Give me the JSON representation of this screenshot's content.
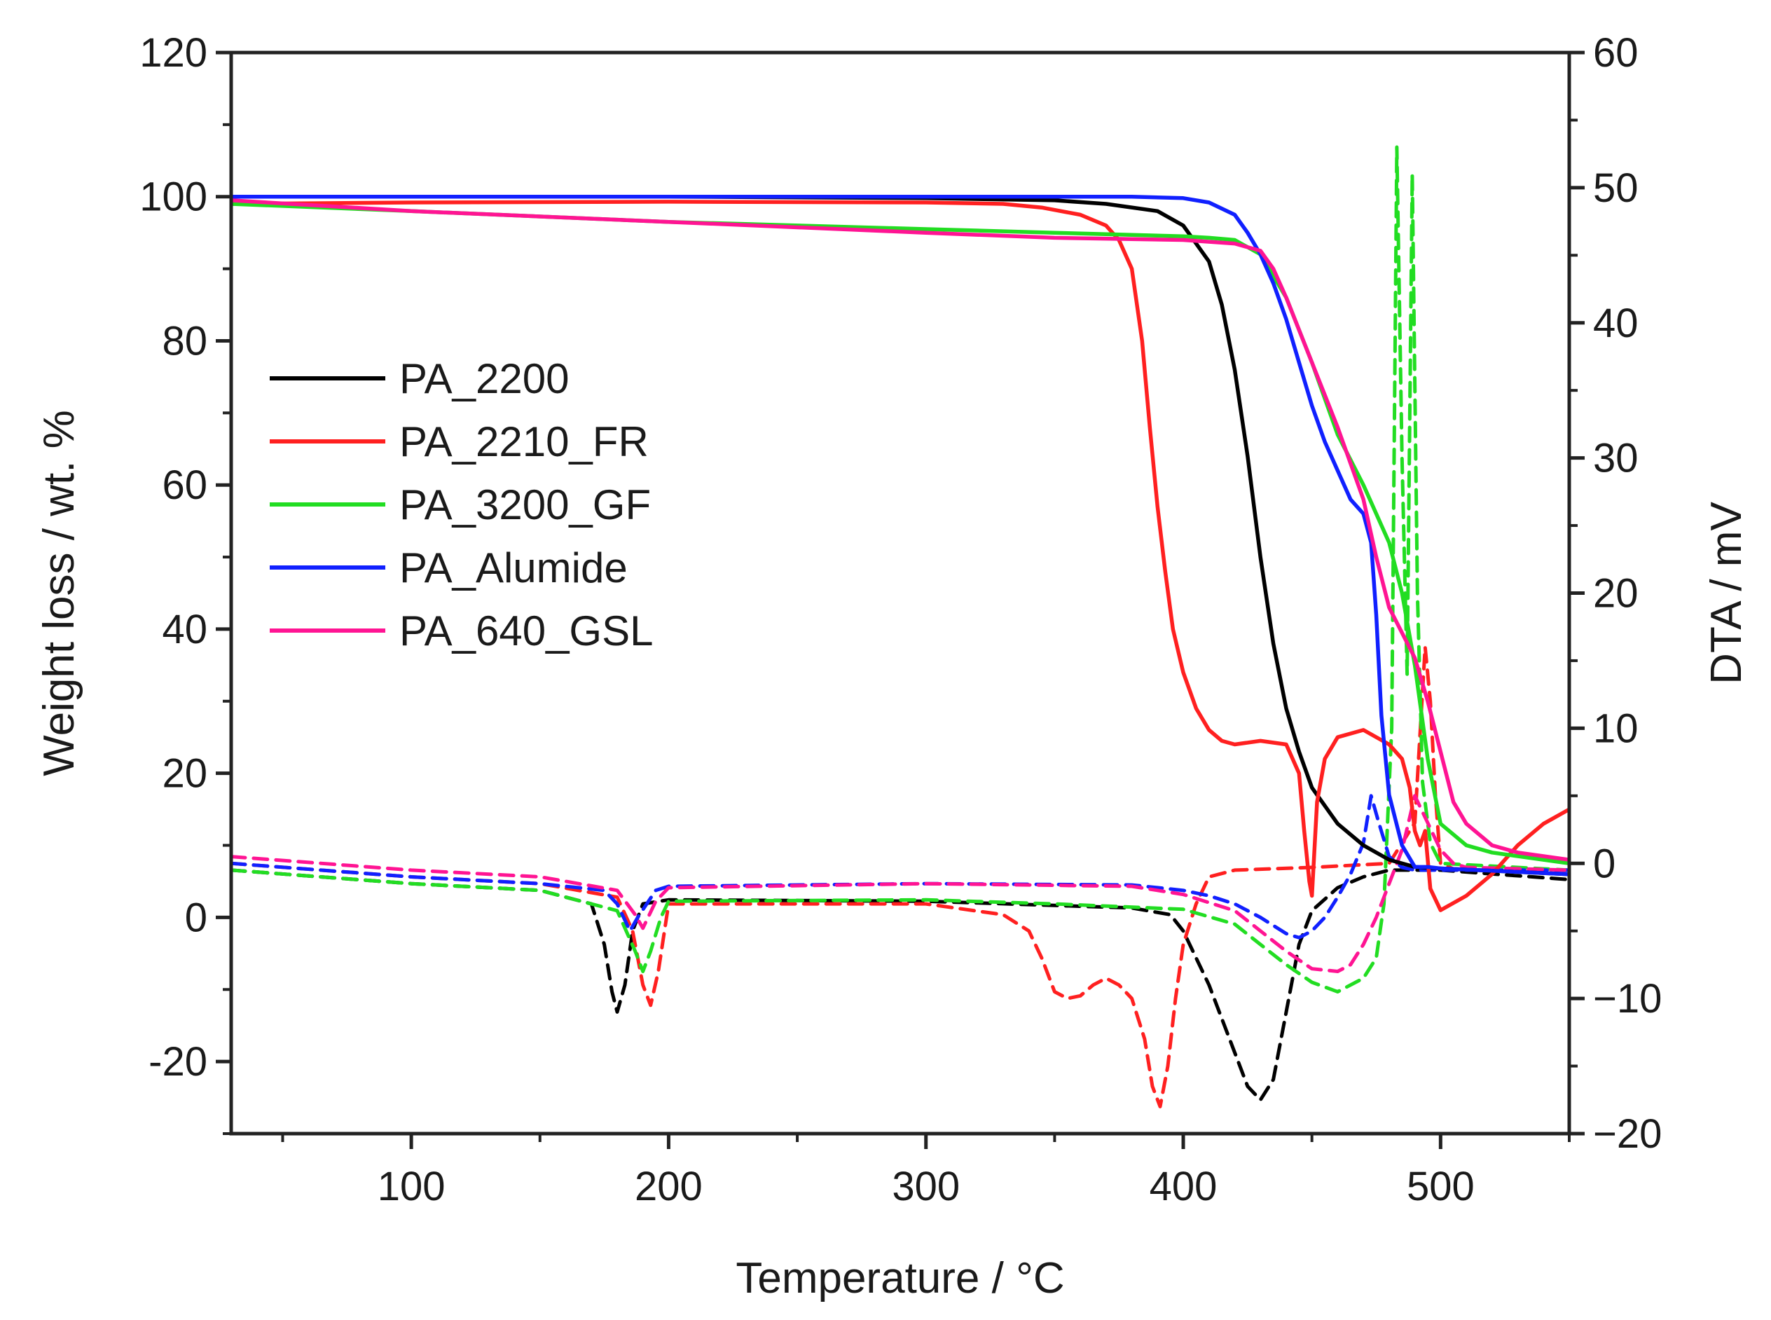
{
  "chart_data": {
    "type": "line",
    "xlabel": "Temperature / °C",
    "ylabel_left": "Weight loss / wt. %",
    "ylabel_right": "DTA / mV",
    "xlim": [
      30,
      550
    ],
    "ylim_left": [
      -30,
      120
    ],
    "ylim_right": [
      -20,
      60
    ],
    "x_ticks": [
      100,
      200,
      300,
      400,
      500
    ],
    "y_left_ticks": [
      -20,
      0,
      20,
      40,
      60,
      80,
      100,
      120
    ],
    "y_right_ticks": [
      -20,
      -10,
      0,
      10,
      20,
      30,
      40,
      50,
      60
    ],
    "x_tick_labels": [
      "100",
      "200",
      "300",
      "400",
      "500"
    ],
    "y_left_tick_labels": [
      "-20",
      "0",
      "20",
      "40",
      "60",
      "80",
      "100",
      "120"
    ],
    "y_right_tick_labels": [
      "−20",
      "−10",
      "0",
      "10",
      "20",
      "30",
      "40",
      "50",
      "60"
    ],
    "legend": [
      "PA_2200",
      "PA_2210_FR",
      "PA_3200_GF",
      "PA_Alumide",
      "PA_640_GSL"
    ],
    "series": [
      {
        "name": "PA_2200",
        "color": "#000000",
        "kind": "TG",
        "axis": "left",
        "x": [
          30,
          100,
          200,
          300,
          350,
          370,
          390,
          400,
          410,
          415,
          420,
          425,
          430,
          435,
          440,
          445,
          450,
          460,
          470,
          480,
          490,
          500,
          550
        ],
        "y": [
          100,
          100,
          100,
          99.8,
          99.5,
          99,
          98,
          96,
          91,
          85,
          76,
          64,
          50,
          38,
          29,
          23,
          18,
          13,
          10,
          8,
          7,
          6.8,
          6
        ]
      },
      {
        "name": "PA_2210_FR",
        "color": "#ff2020",
        "kind": "TG",
        "axis": "left",
        "x": [
          30,
          100,
          200,
          300,
          330,
          345,
          360,
          370,
          375,
          380,
          384,
          387,
          390,
          393,
          396,
          400,
          405,
          410,
          415,
          420,
          430,
          440,
          445,
          447,
          449,
          450,
          452,
          455,
          460,
          470,
          480,
          485,
          488,
          490,
          492,
          494,
          496,
          500,
          510,
          520,
          530,
          540,
          550
        ],
        "y": [
          99,
          99.2,
          99.3,
          99.2,
          99,
          98.5,
          97.5,
          96,
          94,
          90,
          80,
          68,
          57,
          48,
          40,
          34,
          29,
          26,
          24.5,
          24,
          24.5,
          24,
          20,
          12,
          5,
          3,
          16,
          22,
          25,
          26,
          24,
          22,
          18,
          12,
          10,
          12,
          4,
          1,
          3,
          6,
          10,
          13,
          15
        ]
      },
      {
        "name": "PA_3200_GF",
        "color": "#22dd22",
        "kind": "TG",
        "axis": "left",
        "x": [
          30,
          100,
          200,
          300,
          350,
          400,
          410,
          420,
          430,
          440,
          450,
          460,
          470,
          480,
          485,
          490,
          495,
          500,
          510,
          520,
          530,
          540,
          550
        ],
        "y": [
          99,
          98,
          96.5,
          95.5,
          95,
          94.5,
          94.3,
          94,
          92,
          86,
          77,
          67,
          60,
          52,
          45,
          35,
          22,
          13,
          10,
          9,
          8.5,
          8,
          7.5
        ]
      },
      {
        "name": "PA_Alumide",
        "color": "#1020ff",
        "kind": "TG",
        "axis": "left",
        "x": [
          30,
          100,
          200,
          300,
          380,
          400,
          410,
          420,
          425,
          430,
          435,
          440,
          445,
          450,
          455,
          460,
          465,
          470,
          473,
          475,
          477,
          480,
          485,
          490,
          495,
          500,
          550
        ],
        "y": [
          100,
          100,
          100,
          100,
          100,
          99.8,
          99.2,
          97.5,
          95,
          92,
          88,
          83,
          77,
          71,
          66,
          62,
          58,
          56,
          52,
          42,
          28,
          17,
          10,
          7,
          7,
          6.8,
          6
        ]
      },
      {
        "name": "PA_640_GSL",
        "color": "#ff1493",
        "kind": "TG",
        "axis": "left",
        "x": [
          30,
          100,
          200,
          300,
          350,
          400,
          420,
          430,
          435,
          440,
          450,
          460,
          470,
          475,
          480,
          490,
          495,
          500,
          505,
          510,
          520,
          530,
          540,
          550
        ],
        "y": [
          99.5,
          98,
          96.5,
          95,
          94.3,
          94,
          93.5,
          92.5,
          90,
          86,
          77,
          68,
          58,
          50,
          43,
          36,
          30,
          23,
          16,
          13,
          10,
          9,
          8.5,
          8
        ]
      },
      {
        "name": "PA_2200",
        "color": "#000000",
        "kind": "DTA",
        "axis": "right",
        "x": [
          30,
          100,
          150,
          170,
          175,
          178,
          180,
          183,
          186,
          190,
          200,
          300,
          380,
          395,
          400,
          405,
          410,
          420,
          425,
          430,
          435,
          440,
          445,
          450,
          460,
          470,
          480,
          490,
          500,
          550
        ],
        "y": [
          -0.5,
          -1.5,
          -2,
          -3,
          -6,
          -9.5,
          -11,
          -9,
          -5,
          -3,
          -2.7,
          -2.8,
          -3.3,
          -3.8,
          -5,
          -7,
          -9,
          -14,
          -16.5,
          -17.5,
          -16,
          -11,
          -6,
          -3.5,
          -1.8,
          -1,
          -0.5,
          -0.5,
          -0.5,
          -1.2
        ]
      },
      {
        "name": "PA_2210_FR",
        "color": "#ff2020",
        "kind": "DTA",
        "axis": "right",
        "x": [
          30,
          100,
          150,
          180,
          186,
          190,
          193,
          196,
          200,
          300,
          330,
          340,
          345,
          350,
          355,
          360,
          365,
          370,
          375,
          380,
          385,
          388,
          391,
          394,
          397,
          400,
          405,
          410,
          420,
          450,
          480,
          490,
          494,
          496,
          498,
          500,
          505,
          550
        ],
        "y": [
          0,
          -1,
          -1.5,
          -2.5,
          -5,
          -9,
          -10.5,
          -8,
          -3,
          -3,
          -3.8,
          -5,
          -7,
          -9.5,
          -10,
          -9.8,
          -9,
          -8.5,
          -9,
          -10,
          -13,
          -16.5,
          -18,
          -15,
          -10,
          -6,
          -3,
          -1,
          -0.5,
          -0.3,
          0,
          3,
          16,
          12,
          5,
          0,
          -0.4,
          -0.8
        ]
      },
      {
        "name": "PA_3200_GF",
        "color": "#22dd22",
        "kind": "DTA",
        "axis": "right",
        "x": [
          30,
          100,
          150,
          180,
          187,
          190,
          193,
          197,
          200,
          300,
          350,
          400,
          420,
          430,
          440,
          450,
          460,
          470,
          475,
          478,
          481,
          483,
          485,
          487,
          489,
          491,
          493,
          496,
          500,
          550
        ],
        "y": [
          -0.5,
          -1.5,
          -2,
          -3.5,
          -6.5,
          -8,
          -6.5,
          -4,
          -2.8,
          -2.7,
          -3,
          -3.4,
          -4.5,
          -6,
          -7.5,
          -8.8,
          -9.5,
          -8.5,
          -7,
          -3,
          10,
          53,
          30,
          14,
          51,
          20,
          6,
          1.5,
          0,
          -0.5
        ]
      },
      {
        "name": "PA_Alumide",
        "color": "#1020ff",
        "kind": "DTA",
        "axis": "right",
        "x": [
          30,
          100,
          150,
          175,
          180,
          185,
          188,
          195,
          200,
          300,
          380,
          400,
          410,
          420,
          430,
          440,
          445,
          450,
          455,
          460,
          465,
          470,
          473,
          476,
          480,
          485,
          490,
          550
        ],
        "y": [
          0,
          -1,
          -1.5,
          -2,
          -3,
          -5,
          -4,
          -2,
          -1.7,
          -1.5,
          -1.6,
          -2,
          -2.4,
          -3,
          -4,
          -5.2,
          -5.5,
          -5,
          -4,
          -2.5,
          -0.8,
          1.5,
          5,
          3,
          0.5,
          -0.3,
          -0.5,
          -0.5
        ]
      },
      {
        "name": "PA_640_GSL",
        "color": "#ff1493",
        "kind": "DTA",
        "axis": "right",
        "x": [
          30,
          100,
          150,
          180,
          187,
          190,
          195,
          200,
          300,
          380,
          400,
          420,
          430,
          440,
          450,
          460,
          465,
          470,
          475,
          480,
          485,
          490,
          495,
          500,
          505,
          510,
          550
        ],
        "y": [
          0.5,
          -0.5,
          -1,
          -2,
          -3.8,
          -4.8,
          -2.8,
          -1.8,
          -1.5,
          -1.7,
          -2.3,
          -3.5,
          -5,
          -6.5,
          -7.8,
          -8,
          -7.5,
          -6,
          -4,
          -1.5,
          1,
          5,
          3,
          1,
          0,
          -0.3,
          -0.5
        ]
      }
    ]
  }
}
